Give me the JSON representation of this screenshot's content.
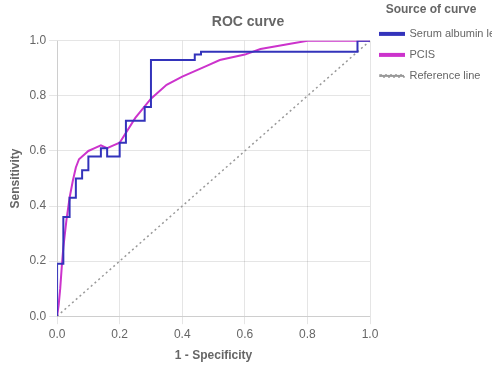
{
  "chart_data": {
    "type": "line",
    "title": "ROC curve",
    "x_label": "1 - Specificity",
    "y_label": "Sensitivity",
    "legend_title": "Source of curve",
    "legend": "right",
    "grid": true,
    "xlim": [
      0.0,
      1.0
    ],
    "ylim": [
      0.0,
      1.0
    ],
    "xticks": [
      {
        "value": 0.0,
        "label": "0.0"
      },
      0.2,
      0.4,
      0.6,
      0.8,
      {
        "value": 1.0,
        "label": "1.0"
      }
    ],
    "yticks": [
      {
        "value": 0.0,
        "label": "0.0"
      },
      0.2,
      0.4,
      0.6,
      0.8,
      {
        "value": 1.0,
        "label": "1.0"
      }
    ],
    "series": [
      {
        "name": "Serum albumin level",
        "color": "#3333bb",
        "line_style": "solid",
        "marker": "none",
        "x": [
          0.0,
          0.0,
          0.02,
          0.02,
          0.04,
          0.04,
          0.06,
          0.06,
          0.08,
          0.08,
          0.1,
          0.1,
          0.14,
          0.14,
          0.16,
          0.16,
          0.2,
          0.2,
          0.22,
          0.22,
          0.28,
          0.28,
          0.3,
          0.3,
          0.44,
          0.44,
          0.46,
          0.46,
          0.58,
          0.58,
          0.6,
          0.6,
          0.96,
          0.96,
          1.0
        ],
        "values": [
          0.0,
          0.19,
          0.19,
          0.36,
          0.36,
          0.43,
          0.43,
          0.5,
          0.5,
          0.53,
          0.53,
          0.58,
          0.58,
          0.61,
          0.61,
          0.58,
          0.58,
          0.63,
          0.63,
          0.71,
          0.71,
          0.76,
          0.76,
          0.93,
          0.93,
          0.95,
          0.95,
          0.96,
          0.96,
          0.96,
          0.96,
          0.96,
          0.96,
          1.0,
          1.0
        ]
      },
      {
        "name": "PCIS",
        "color": "#cc33cc",
        "line_style": "solid",
        "marker": "none",
        "x": [
          0.0,
          0.005,
          0.01,
          0.015,
          0.02,
          0.03,
          0.04,
          0.05,
          0.06,
          0.07,
          0.08,
          0.09,
          0.1,
          0.12,
          0.14,
          0.16,
          0.18,
          0.2,
          0.25,
          0.3,
          0.35,
          0.4,
          0.44,
          0.48,
          0.52,
          0.56,
          0.6,
          0.65,
          0.7,
          0.75,
          0.8,
          0.85,
          0.9,
          0.95,
          1.0
        ],
        "values": [
          0.0,
          0.04,
          0.1,
          0.18,
          0.25,
          0.35,
          0.43,
          0.49,
          0.54,
          0.57,
          0.58,
          0.59,
          0.6,
          0.61,
          0.62,
          0.61,
          0.62,
          0.63,
          0.72,
          0.79,
          0.84,
          0.87,
          0.89,
          0.91,
          0.93,
          0.94,
          0.95,
          0.97,
          0.98,
          0.99,
          1.0,
          1.0,
          1.0,
          1.0,
          1.0
        ]
      },
      {
        "name": "Reference line",
        "color": "#999999",
        "line_style": "dotted",
        "marker": "none",
        "x": [
          0,
          1
        ],
        "values": [
          0,
          1
        ]
      }
    ]
  }
}
